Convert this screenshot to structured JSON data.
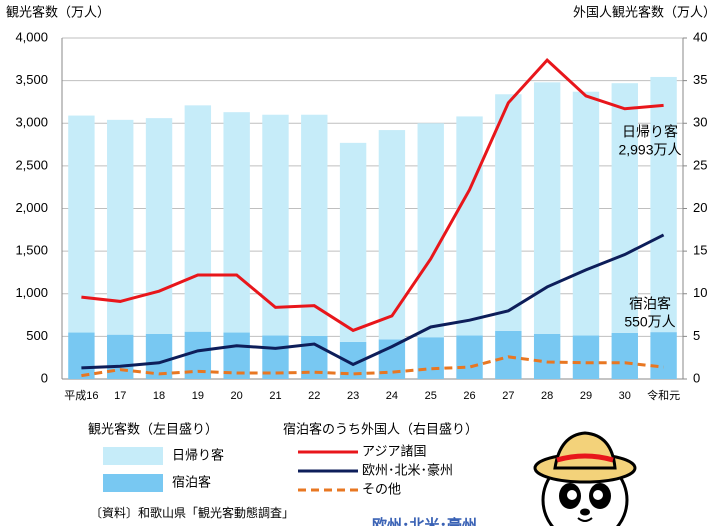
{
  "chart_data": {
    "type": "bar",
    "y_label": "観光客数（万人）",
    "y2_label": "外国人観光客数（万人）",
    "categories": [
      "平成16",
      "17",
      "18",
      "19",
      "20",
      "21",
      "22",
      "23",
      "24",
      "25",
      "26",
      "27",
      "28",
      "29",
      "30",
      "令和元"
    ],
    "series": [
      {
        "name": "日帰り客",
        "type": "bar",
        "color": "#c6ecf9",
        "values": [
          2545,
          2520,
          2530,
          2655,
          2585,
          2590,
          2595,
          2335,
          2455,
          2510,
          2570,
          2775,
          2950,
          2860,
          2930,
          2993
        ]
      },
      {
        "name": "宿泊客",
        "type": "bar",
        "color": "#78c8f2",
        "values": [
          545,
          520,
          530,
          555,
          545,
          510,
          505,
          435,
          465,
          490,
          510,
          565,
          530,
          510,
          540,
          550
        ]
      },
      {
        "name": "アジア諸国",
        "type": "line",
        "axis": "y2",
        "color": "#e8161b",
        "values": [
          9.6,
          9.1,
          10.3,
          12.2,
          12.2,
          8.4,
          8.6,
          5.7,
          7.4,
          14.1,
          22.2,
          32.4,
          37.4,
          33.2,
          31.7,
          32.1
        ]
      },
      {
        "name": "欧州･北米･豪州",
        "type": "line",
        "axis": "y2",
        "color": "#0d1e5a",
        "values": [
          1.3,
          1.5,
          1.9,
          3.3,
          3.9,
          3.6,
          4.1,
          1.7,
          3.8,
          6.1,
          6.9,
          8.0,
          10.8,
          12.8,
          14.6,
          16.9
        ]
      },
      {
        "name": "その他",
        "type": "line",
        "axis": "y2",
        "dashed": true,
        "color": "#e87722",
        "values": [
          0.4,
          1.1,
          0.6,
          0.9,
          0.7,
          0.7,
          0.8,
          0.6,
          0.8,
          1.2,
          1.4,
          2.6,
          2.0,
          1.9,
          1.9,
          1.4
        ]
      }
    ],
    "ylim": [
      0,
      4000
    ],
    "yticks": [
      0,
      500,
      {
        "value": 1000,
        "label": "1,000"
      },
      {
        "value": 1500,
        "label": "1,500"
      },
      {
        "value": 2000,
        "label": "2,000"
      },
      {
        "value": 2500,
        "label": "2,500"
      },
      {
        "value": 3000,
        "label": "3,000"
      },
      {
        "value": 3500,
        "label": "3,500"
      },
      {
        "value": 4000,
        "label": "4,000"
      }
    ],
    "y2lim": [
      0,
      40
    ],
    "y2ticks": [
      0,
      5,
      10,
      15,
      20,
      25,
      30,
      35,
      40
    ],
    "grid": true,
    "annotations": [
      [
        "日帰り客",
        "2,993万人"
      ],
      [
        "宿泊客",
        "550万人"
      ]
    ],
    "legend_titles": [
      "観光客数（左目盛り）",
      "宿泊客のうち外国人（右目盛り）"
    ],
    "source": "〔資料〕和歌山県「観光客動態調査」",
    "footer_text": "欧州･北米･豪州"
  }
}
